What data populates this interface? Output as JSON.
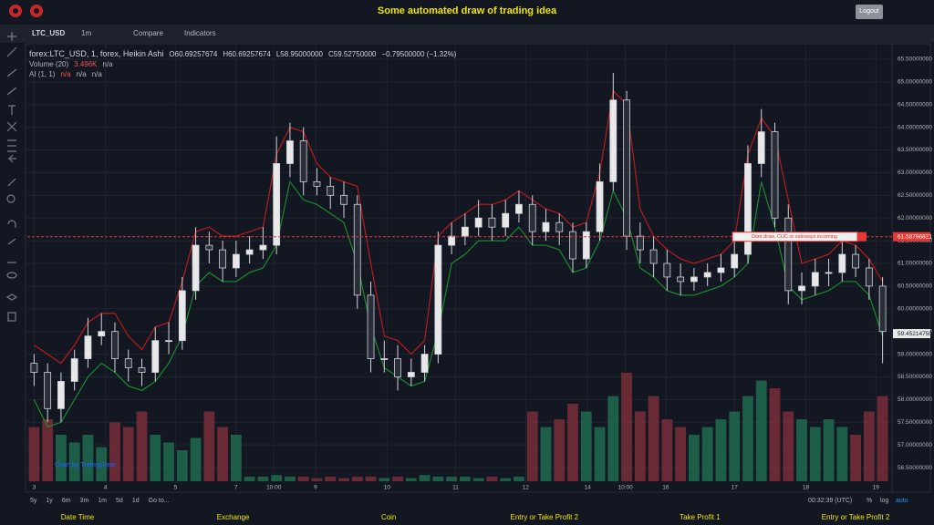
{
  "header": {
    "title": "Some automated draw of trading idea",
    "logout": "Logout"
  },
  "toolbar": {
    "symbol": "LTC_USD",
    "interval": "1m",
    "compare": "Compare",
    "indicators": "Indicators"
  },
  "legend": {
    "symbol": "forex:LTC_USD, 1, forex, Heikin Ashi",
    "fields": [
      "O60.69257674",
      "H60.69257674",
      "L58.95000000",
      "C59.52750000",
      "−0.79500000 (−1.32%)"
    ],
    "volume": {
      "name": "Volume (20)",
      "values": [
        "3.496K",
        "n/a"
      ]
    },
    "ai": {
      "name": "AI (1, 1)",
      "values": [
        "n/a",
        "n/a",
        "n/a"
      ]
    }
  },
  "chart_data": {
    "type": "candlestick",
    "open": [
      58.8,
      58.6,
      57.8,
      58.4,
      58.9,
      59.4,
      59.5,
      58.9,
      58.7,
      58.6,
      59.3,
      59.3,
      60.4,
      61.4,
      61.3,
      60.9,
      61.2,
      61.3,
      61.4,
      63.2,
      63.7,
      62.8,
      62.7,
      62.5,
      62.3,
      60.3,
      58.9,
      58.9,
      58.5,
      58.6,
      59.0,
      61.4,
      61.6,
      61.8,
      62.0,
      61.8,
      62.1,
      62.3,
      61.7,
      61.9,
      61.7,
      61.1,
      61.7,
      62.8,
      64.6,
      61.6,
      61.3,
      61.0,
      60.7,
      60.6,
      60.7,
      60.8,
      60.9,
      61.2,
      63.2,
      63.9,
      62.0,
      60.4,
      60.5,
      60.8,
      60.8,
      61.2,
      60.9,
      60.5
    ],
    "high": [
      59.0,
      58.8,
      58.6,
      59.1,
      59.8,
      59.9,
      59.7,
      59.1,
      58.9,
      59.6,
      59.7,
      60.7,
      61.8,
      61.7,
      61.5,
      61.5,
      61.6,
      61.8,
      63.8,
      64.1,
      64.0,
      63.1,
      62.9,
      62.8,
      62.5,
      60.6,
      59.3,
      59.2,
      58.9,
      59.2,
      61.7,
      61.9,
      62.1,
      62.4,
      62.3,
      62.4,
      62.6,
      62.5,
      62.2,
      62.1,
      61.9,
      61.9,
      63.2,
      65.2,
      64.8,
      61.9,
      61.6,
      61.3,
      61.0,
      60.9,
      61.0,
      61.2,
      61.5,
      63.6,
      64.4,
      64.1,
      62.3,
      60.8,
      61.1,
      61.1,
      61.5,
      61.4,
      61.1,
      60.7
    ],
    "low": [
      58.3,
      57.5,
      57.5,
      58.2,
      58.7,
      59.2,
      58.6,
      58.4,
      58.3,
      58.4,
      59.0,
      59.1,
      60.2,
      61.0,
      60.6,
      60.7,
      61.0,
      61.1,
      61.2,
      62.9,
      62.5,
      62.5,
      62.2,
      62.0,
      60.0,
      58.6,
      58.6,
      58.2,
      58.3,
      58.4,
      58.8,
      61.2,
      61.4,
      61.6,
      61.5,
      61.6,
      61.9,
      61.4,
      61.5,
      61.4,
      60.8,
      60.9,
      61.5,
      62.6,
      61.3,
      61.0,
      60.7,
      60.4,
      60.3,
      60.4,
      60.5,
      60.6,
      60.7,
      61.0,
      62.9,
      61.8,
      60.1,
      60.1,
      60.3,
      60.5,
      60.6,
      60.7,
      60.2,
      58.8
    ],
    "close": [
      58.6,
      57.8,
      58.4,
      58.9,
      59.4,
      59.5,
      58.9,
      58.7,
      58.6,
      59.3,
      59.3,
      60.4,
      61.4,
      61.3,
      60.9,
      61.2,
      61.3,
      61.4,
      63.2,
      63.7,
      62.8,
      62.7,
      62.5,
      62.3,
      60.3,
      58.9,
      58.9,
      58.5,
      58.6,
      59.0,
      61.4,
      61.6,
      61.8,
      62.0,
      61.8,
      62.1,
      62.3,
      61.7,
      61.9,
      61.7,
      61.1,
      61.7,
      62.8,
      64.6,
      61.6,
      61.3,
      61.0,
      60.7,
      60.6,
      60.7,
      60.8,
      60.9,
      61.2,
      63.2,
      63.9,
      62.0,
      60.4,
      60.5,
      60.8,
      60.8,
      61.2,
      60.9,
      60.5,
      59.5
    ],
    "volume": [
      3.5,
      4.0,
      3.0,
      2.5,
      3.0,
      2.2,
      3.8,
      3.5,
      4.5,
      3.0,
      2.5,
      2.0,
      2.8,
      4.5,
      3.5,
      3.0,
      0.3,
      0.3,
      0.4,
      0.3,
      0.3,
      0.2,
      0.3,
      0.2,
      0.3,
      0.3,
      0.2,
      0.3,
      0.2,
      0.4,
      0.3,
      0.3,
      0.3,
      0.2,
      0.3,
      0.2,
      0.3,
      4.5,
      3.5,
      4.0,
      5.0,
      4.5,
      3.5,
      5.5,
      7.0,
      4.5,
      5.5,
      4.0,
      3.5,
      3.0,
      3.5,
      4.0,
      4.5,
      5.5,
      6.5,
      6.0,
      4.5,
      4.0,
      3.5,
      4.0,
      3.5,
      3.0,
      4.5,
      5.5
    ],
    "vlim": [
      0,
      10
    ],
    "lines": [
      {
        "color": "#b71c1c",
        "values": [
          59.2,
          59.0,
          58.8,
          59.2,
          59.7,
          59.9,
          59.9,
          59.4,
          59.1,
          59.6,
          59.7,
          60.6,
          61.7,
          61.8,
          61.6,
          61.6,
          61.7,
          61.8,
          63.4,
          64.0,
          63.9,
          63.2,
          62.9,
          62.8,
          62.7,
          61.0,
          59.4,
          59.3,
          59.0,
          59.3,
          61.6,
          61.9,
          62.1,
          62.3,
          62.3,
          62.4,
          62.6,
          62.4,
          62.2,
          62.1,
          61.8,
          61.9,
          63.0,
          64.8,
          64.5,
          62.2,
          61.6,
          61.3,
          61.1,
          61.0,
          61.1,
          61.2,
          61.5,
          63.4,
          64.2,
          63.8,
          62.4,
          61.0,
          61.1,
          61.2,
          61.5,
          61.4,
          61.1,
          60.6
        ]
      },
      {
        "color": "#1b8a2e",
        "values": [
          58.0,
          57.4,
          57.5,
          58.0,
          58.5,
          58.8,
          58.6,
          58.3,
          58.2,
          58.4,
          58.8,
          59.4,
          60.5,
          60.8,
          60.6,
          60.6,
          60.8,
          60.9,
          61.4,
          62.8,
          62.4,
          62.3,
          62.1,
          61.9,
          61.0,
          59.6,
          58.7,
          58.5,
          58.3,
          58.4,
          59.5,
          61.0,
          61.2,
          61.5,
          61.5,
          61.5,
          61.8,
          61.4,
          61.4,
          61.3,
          60.8,
          60.9,
          61.5,
          62.6,
          62.0,
          60.9,
          60.7,
          60.4,
          60.3,
          60.3,
          60.4,
          60.5,
          60.7,
          61.0,
          62.8,
          61.8,
          60.5,
          60.2,
          60.3,
          60.4,
          60.6,
          60.6,
          60.3,
          59.4
        ]
      }
    ],
    "up_color": "#e8e8e8",
    "down_color": "#2a2e39",
    "volume_up_color": "#1f6b4f",
    "volume_down_color": "#7a2e38",
    "ylim": [
      56.2,
      65.8
    ],
    "yticks": [
      {
        "value": 56.5,
        "label": "56.50000000"
      },
      {
        "value": 57,
        "label": "57.00000000"
      },
      {
        "value": 57.5,
        "label": "57.50000000"
      },
      {
        "value": 58,
        "label": "58.00000000"
      },
      {
        "value": 58.5,
        "label": "58.50000000"
      },
      {
        "value": 59,
        "label": "59.00000000"
      },
      {
        "value": 59.5,
        "label": "59.50000000"
      },
      {
        "value": 60,
        "label": "60.00000000"
      },
      {
        "value": 60.5,
        "label": "60.50000000"
      },
      {
        "value": 61,
        "label": "61.00000000"
      },
      {
        "value": 61.5,
        "label": "61.50000000"
      },
      {
        "value": 62,
        "label": "62.00000000"
      },
      {
        "value": 62.5,
        "label": "62.50000000"
      },
      {
        "value": 63,
        "label": "63.00000000"
      },
      {
        "value": 63.5,
        "label": "63.50000000"
      },
      {
        "value": 64,
        "label": "64.00000000"
      },
      {
        "value": 64.5,
        "label": "64.50000000"
      },
      {
        "value": 65,
        "label": "65.00000000"
      },
      {
        "value": 65.5,
        "label": "65.50000000"
      }
    ],
    "xticks": [
      {
        "value": 0,
        "label": "3"
      },
      {
        "value": 5.3,
        "label": "4"
      },
      {
        "value": 10.5,
        "label": "5"
      },
      {
        "value": 15,
        "label": "7"
      },
      {
        "value": 17.8,
        "label": "10:00"
      },
      {
        "value": 20.9,
        "label": "9"
      },
      {
        "value": 26.2,
        "label": "10"
      },
      {
        "value": 31.3,
        "label": "11"
      },
      {
        "value": 36.5,
        "label": "12"
      },
      {
        "value": 41.1,
        "label": "14"
      },
      {
        "value": 43.9,
        "label": "10:00"
      },
      {
        "value": 46.9,
        "label": "16"
      },
      {
        "value": 52,
        "label": "17"
      },
      {
        "value": 57.3,
        "label": "18"
      },
      {
        "value": 62.5,
        "label": "19"
      }
    ],
    "grid": true,
    "last_price": {
      "value": 59.4521475,
      "label": "59.45214750"
    },
    "alert_price": 61.58786821,
    "annotation": "Dont draw. CUC or sideways incoming",
    "watermark": "Chart by TradingView"
  },
  "bottom": {
    "ranges": [
      "5y",
      "1y",
      "6m",
      "3m",
      "1m",
      "5d",
      "1d",
      "Go to..."
    ],
    "time": "00:32:39 (UTC)",
    "percent": "%",
    "log": "log",
    "auto": "auto"
  },
  "footer": {
    "labels": [
      "Date Time",
      "Exchange",
      "Coin",
      "Entry or Take Profit 2",
      "Take Profit 1",
      "Entry or Take Profit 2"
    ]
  }
}
